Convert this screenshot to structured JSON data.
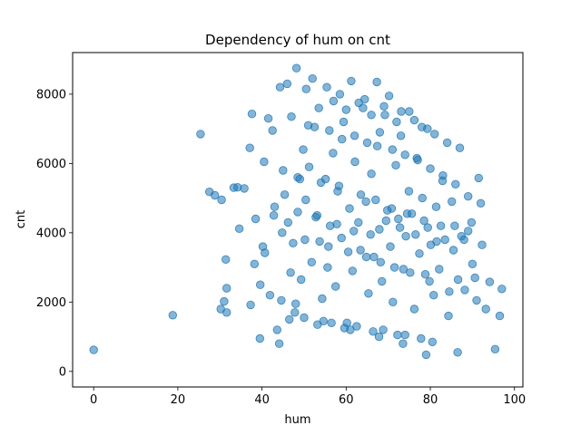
{
  "chart_data": {
    "type": "scatter",
    "title": "Dependency of hum on cnt",
    "xlabel": "hum",
    "ylabel": "cnt",
    "xlim": [
      -5,
      102
    ],
    "ylim": [
      -450,
      9200
    ],
    "xticks": [
      0,
      20,
      40,
      60,
      80,
      100
    ],
    "yticks": [
      0,
      2000,
      4000,
      6000,
      8000
    ],
    "xtick_labels": [
      "0",
      "20",
      "40",
      "60",
      "80",
      "100"
    ],
    "ytick_labels": [
      "0",
      "2000",
      "4000",
      "6000",
      "8000"
    ],
    "grid": false,
    "marker_color": "#1f77b4",
    "marker_alpha": 0.55,
    "x": [
      0.0,
      18.8,
      25.4,
      27.5,
      28.8,
      30.4,
      31.4,
      31.6,
      31.0,
      30.2,
      31.6,
      33.3,
      34.2,
      34.6,
      35.8,
      37.1,
      37.6,
      37.3,
      38.2,
      39.6,
      40.2,
      40.7,
      41.9,
      42.8,
      43.6,
      44.1,
      44.6,
      45.4,
      46.2,
      46.8,
      47.4,
      48.0,
      48.5,
      49.3,
      49.8,
      50.4,
      51.2,
      51.8,
      52.5,
      53.1,
      53.7,
      54.3,
      55.1,
      55.6,
      56.2,
      56.9,
      57.5,
      58.3,
      58.9,
      59.4,
      60.2,
      60.8,
      61.5,
      62.1,
      62.9,
      63.4,
      64.0,
      64.7,
      65.3,
      66.0,
      66.6,
      67.4,
      67.9,
      68.5,
      69.2,
      69.8,
      70.5,
      71.1,
      71.8,
      72.4,
      73.0,
      73.6,
      74.2,
      74.9,
      75.6,
      76.2,
      76.8,
      77.4,
      78.1,
      78.8,
      79.4,
      80.1,
      80.8,
      81.4,
      82.1,
      82.9,
      83.5,
      84.3,
      85.1,
      85.8,
      86.6,
      87.4,
      88.2,
      89.0,
      89.8,
      90.6,
      91.5,
      92.3,
      93.2,
      94.1,
      95.4,
      96.5,
      97.0,
      48.2,
      52.0,
      55.4,
      58.5,
      61.2,
      64.4,
      67.3,
      70.2,
      73.1,
      76.2,
      79.3,
      44.3,
      41.5,
      46.0,
      50.5,
      53.5,
      57.0,
      60.0,
      63.0,
      66.0,
      69.0,
      72.0,
      75.0,
      78.0,
      81.0,
      84.0,
      87.0,
      42.5,
      47.0,
      51.0,
      56.0,
      59.0,
      62.0,
      65.0,
      68.0,
      71.0,
      74.0,
      77.0,
      80.0,
      83.0,
      86.0,
      89.0,
      92.0,
      40.5,
      45.0,
      49.0,
      54.0,
      58.0,
      63.5,
      67.0,
      70.8,
      74.5,
      78.5,
      82.5,
      88.0,
      43.0,
      48.5,
      52.8,
      57.8,
      61.8,
      65.8,
      69.5,
      72.8,
      76.5,
      81.5,
      85.5,
      90.0,
      38.5,
      44.8,
      50.2,
      55.8,
      60.5,
      64.8,
      68.2,
      71.5,
      75.2,
      79.8,
      84.5,
      91.0,
      46.5,
      53.2,
      59.6,
      66.4,
      72.2,
      77.8,
      50.0,
      56.5,
      62.5,
      68.8,
      74.0,
      80.5,
      86.5,
      39.5,
      47.8,
      54.6,
      61.0,
      67.8,
      73.5,
      79.0
    ],
    "y": [
      620,
      1620,
      6850,
      5180,
      5080,
      4950,
      3230,
      2400,
      2020,
      1800,
      1700,
      5300,
      5310,
      4120,
      5280,
      6450,
      7430,
      1920,
      3100,
      2500,
      3600,
      3420,
      2200,
      4500,
      1200,
      800,
      2050,
      5100,
      4300,
      2850,
      3700,
      1950,
      5600,
      2650,
      6400,
      4950,
      5900,
      3150,
      7050,
      4500,
      3750,
      2100,
      5550,
      3000,
      4200,
      6300,
      2450,
      5350,
      3850,
      7200,
      1400,
      4700,
      2900,
      6050,
      4300,
      3500,
      7600,
      4900,
      2250,
      5700,
      3300,
      6500,
      4100,
      2600,
      7400,
      4650,
      3600,
      2000,
      5950,
      4400,
      6800,
      2950,
      3900,
      5200,
      4550,
      1800,
      6150,
      3400,
      5000,
      2800,
      4150,
      3650,
      2200,
      4750,
      2950,
      5500,
      3800,
      1600,
      4900,
      4200,
      2650,
      3900,
      2350,
      4050,
      4300,
      2700,
      5580,
      3650,
      1800,
      2580,
      640,
      1600,
      2380,
      8750,
      8450,
      8200,
      8000,
      8380,
      7850,
      8350,
      7950,
      7500,
      7250,
      7000,
      8200,
      7300,
      8300,
      8150,
      7600,
      7800,
      7550,
      7750,
      7400,
      7650,
      7200,
      7500,
      7050,
      6850,
      6600,
      6450,
      6950,
      7350,
      7100,
      6950,
      6700,
      6800,
      6600,
      6900,
      6400,
      6250,
      6100,
      5850,
      5650,
      5400,
      5050,
      4850,
      6050,
      5800,
      5550,
      5450,
      5200,
      5100,
      4950,
      4700,
      4550,
      4350,
      4200,
      3800,
      4750,
      4600,
      4450,
      4250,
      4050,
      3950,
      4350,
      4150,
      3950,
      3750,
      3500,
      3100,
      4400,
      4000,
      3800,
      3600,
      3450,
      3300,
      3150,
      3000,
      2850,
      2600,
      2300,
      2050,
      1500,
      1350,
      1250,
      1150,
      1050,
      950,
      1550,
      1400,
      1300,
      1200,
      1050,
      850,
      550,
      950,
      1700,
      1450,
      1200,
      1000,
      800,
      480
    ],
    "extra_points": []
  }
}
